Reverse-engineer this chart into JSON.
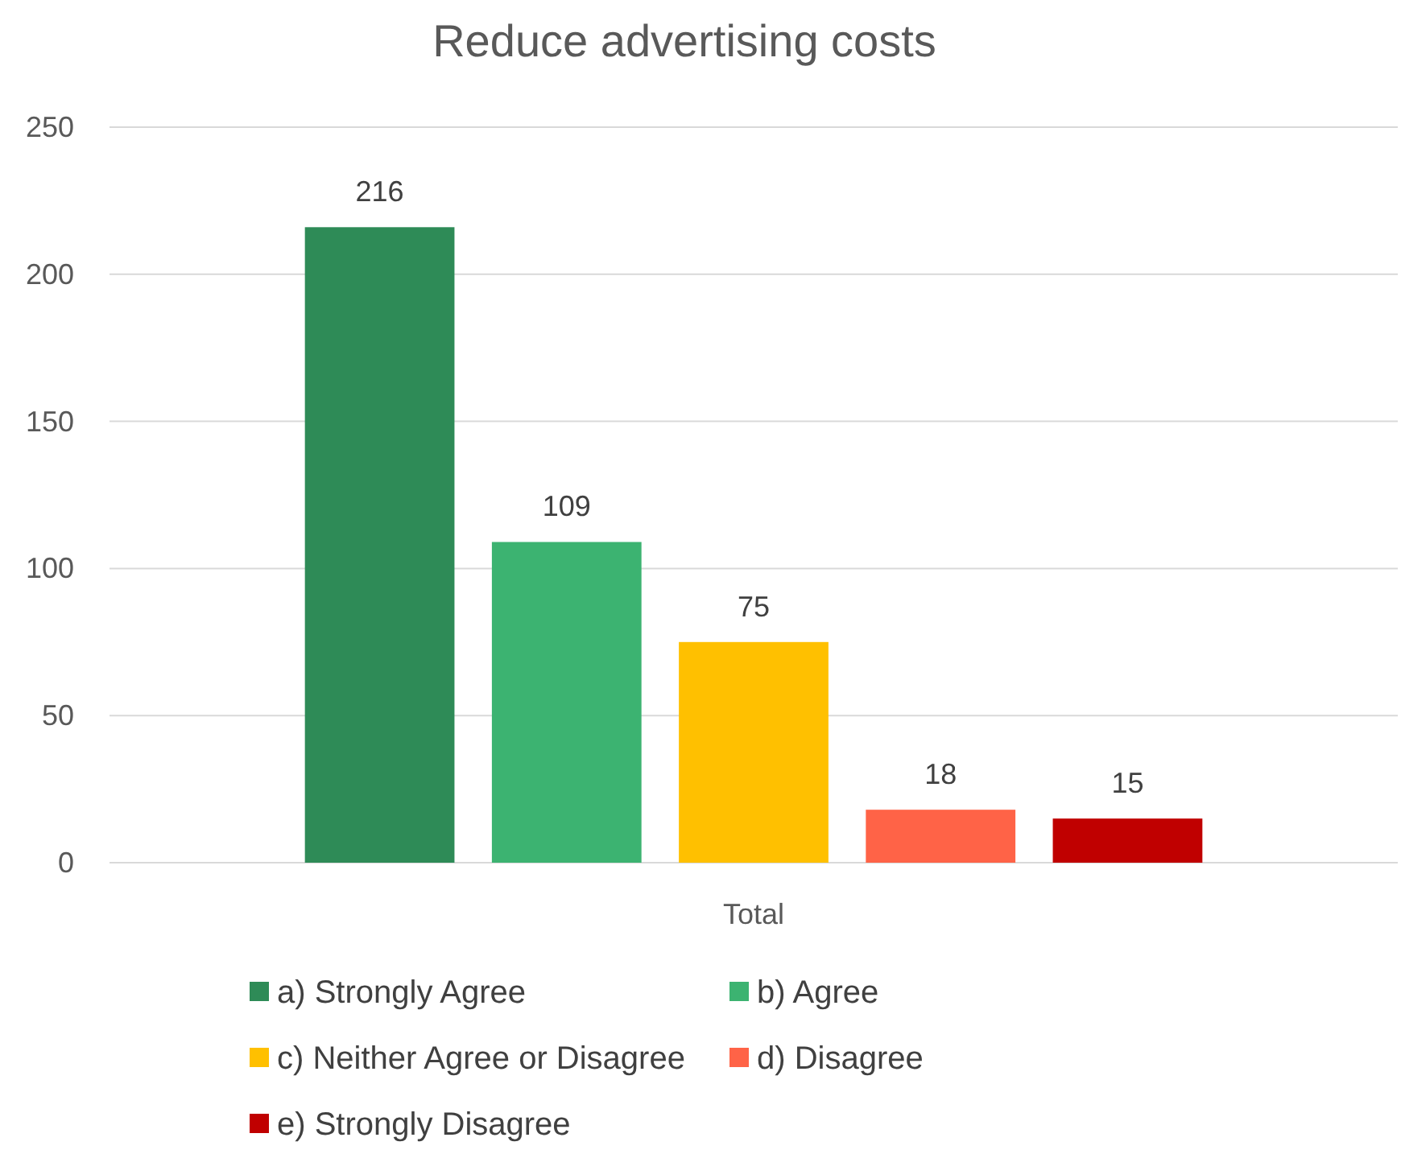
{
  "chart_data": {
    "type": "bar",
    "title": "Reduce advertising costs",
    "categories": [
      "Total"
    ],
    "series": [
      {
        "name": "a) Strongly Agree",
        "color": "#2e8b57",
        "values": [
          216
        ]
      },
      {
        "name": "b) Agree",
        "color": "#3cb371",
        "values": [
          109
        ]
      },
      {
        "name": "c) Neither Agree or Disagree",
        "color": "#ffc000",
        "values": [
          75
        ]
      },
      {
        "name": "d) Disagree",
        "color": "#ff6347",
        "values": [
          18
        ]
      },
      {
        "name": "e) Strongly Disagree",
        "color": "#c00000",
        "values": [
          15
        ]
      }
    ],
    "ylim": [
      0,
      250
    ],
    "yticks": [
      0,
      50,
      100,
      150,
      200,
      250
    ],
    "grid": "y",
    "legend": "bottom",
    "data_labels": true
  }
}
